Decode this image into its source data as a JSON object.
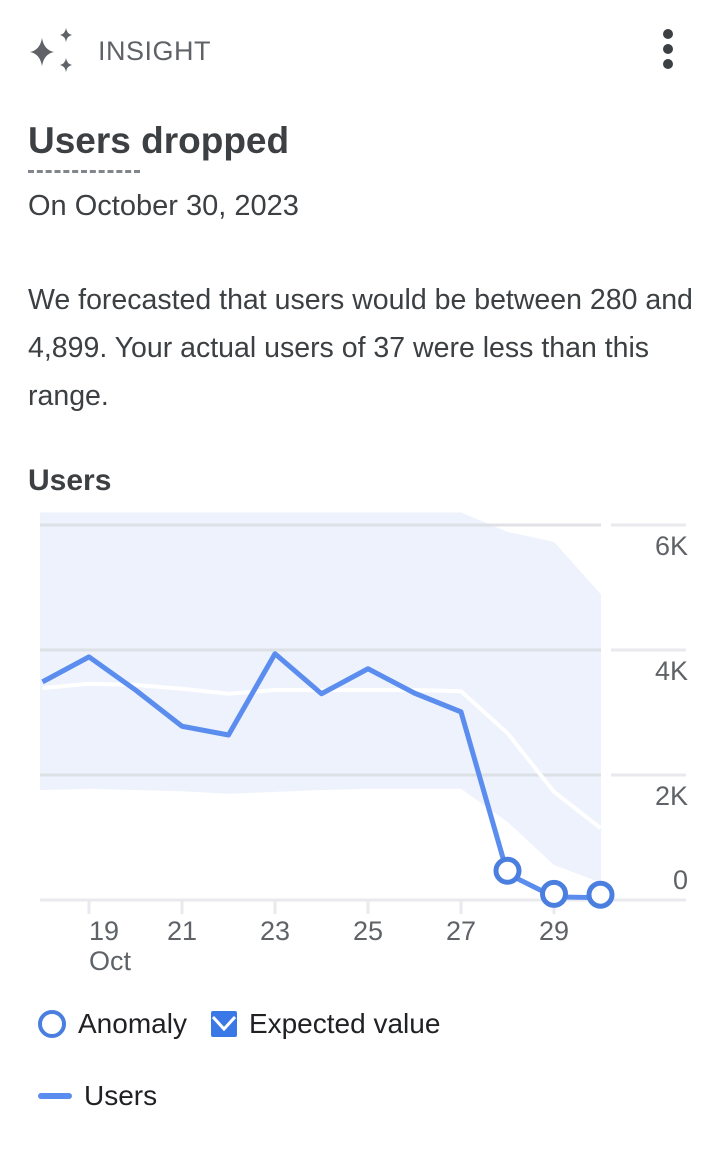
{
  "header": {
    "icon": "sparkle-icon",
    "label": "INSIGHT",
    "menu_icon": "more-vert-icon"
  },
  "insight": {
    "title": "Users dropped",
    "date": "On October 30, 2023",
    "description": "We forecasted that users would be between 280 and 4,899. Your actual users of 37 were less than this range."
  },
  "colors": {
    "line": "#5b8def",
    "band": "#edf2fd",
    "expected": "#ffffff",
    "grid": "#dadce0",
    "text": "#3c4043",
    "tick": "#5f6368"
  },
  "legend": {
    "anomaly": "Anomaly",
    "expected": "Expected value",
    "users": "Users"
  },
  "chart_data": {
    "type": "line",
    "title": "Users",
    "xlabel": "",
    "ylabel": "",
    "x": [
      "Oct 18",
      "Oct 19",
      "Oct 20",
      "Oct 21",
      "Oct 22",
      "Oct 23",
      "Oct 24",
      "Oct 25",
      "Oct 26",
      "Oct 27",
      "Oct 28",
      "Oct 29",
      "Oct 30"
    ],
    "x_tick_labels": [
      "19",
      "21",
      "23",
      "25",
      "27",
      "29"
    ],
    "x_tick_sublabel": "Oct",
    "y_tick_labels": [
      "0",
      "2K",
      "4K",
      "6K"
    ],
    "ylim": [
      0,
      6000
    ],
    "grid": true,
    "y_axis_position": "right",
    "legend_position": "bottom",
    "series": [
      {
        "name": "Users",
        "values": [
          3490,
          3890,
          3360,
          2780,
          2640,
          3940,
          3300,
          3700,
          3310,
          3010,
          420,
          50,
          37
        ]
      },
      {
        "name": "Expected value",
        "values": [
          3390,
          3460,
          3440,
          3380,
          3300,
          3360,
          3360,
          3360,
          3360,
          3340,
          2670,
          1730,
          1150
        ]
      },
      {
        "name": "Expected range upper",
        "values": [
          6200,
          6200,
          6200,
          6200,
          6200,
          6200,
          6200,
          6200,
          6200,
          6200,
          5890,
          5730,
          4899
        ]
      },
      {
        "name": "Expected range lower",
        "values": [
          1760,
          1780,
          1760,
          1740,
          1700,
          1730,
          1760,
          1780,
          1780,
          1780,
          1250,
          560,
          280
        ]
      }
    ],
    "anomalies": [
      {
        "x": "Oct 28",
        "value": 420
      },
      {
        "x": "Oct 29",
        "value": 50
      },
      {
        "x": "Oct 30",
        "value": 37
      }
    ]
  }
}
